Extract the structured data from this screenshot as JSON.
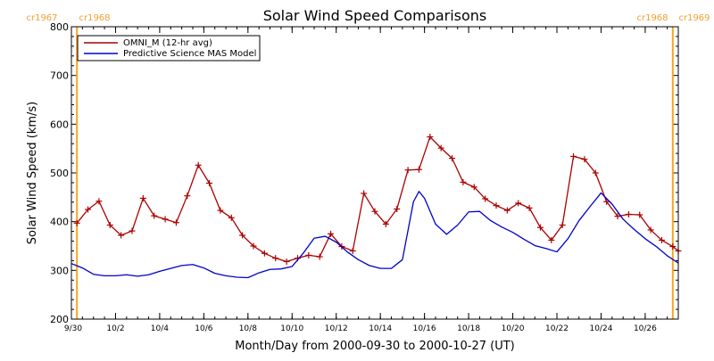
{
  "chart_data": {
    "type": "line",
    "title": "Solar Wind Speed Comparisons",
    "xlabel": "Month/Day from 2000-09-30 to 2000-10-27 (UT)",
    "ylabel": "Solar Wind Speed (km/s)",
    "ylim": [
      200,
      800
    ],
    "yticks": [
      "200",
      "300",
      "400",
      "500",
      "600",
      "700",
      "800"
    ],
    "xlim": [
      "2000-09-30",
      "2000-10-27 12:00"
    ],
    "xticks": [
      {
        "label": "9/30",
        "date": "2000-09-30"
      },
      {
        "label": "10/2",
        "date": "2000-10-02"
      },
      {
        "label": "10/4",
        "date": "2000-10-04"
      },
      {
        "label": "10/6",
        "date": "2000-10-06"
      },
      {
        "label": "10/8",
        "date": "2000-10-08"
      },
      {
        "label": "10/10",
        "date": "2000-10-10"
      },
      {
        "label": "10/12",
        "date": "2000-10-12"
      },
      {
        "label": "10/14",
        "date": "2000-10-14"
      },
      {
        "label": "10/16",
        "date": "2000-10-16"
      },
      {
        "label": "10/18",
        "date": "2000-10-18"
      },
      {
        "label": "10/20",
        "date": "2000-10-20"
      },
      {
        "label": "10/22",
        "date": "2000-10-22"
      },
      {
        "label": "10/24",
        "date": "2000-10-24"
      },
      {
        "label": "10/26",
        "date": "2000-10-26"
      }
    ],
    "legend_position": "top-left",
    "carrington_markers": [
      {
        "date": "2000-09-30 06:00",
        "left_label": "cr1967",
        "right_label": "cr1968",
        "color": "#f5a623"
      },
      {
        "date": "2000-10-27 06:00",
        "left_label": "cr1968",
        "right_label": "cr1969",
        "color": "#f5a623"
      }
    ],
    "series": [
      {
        "name": "OMNI_M (12-hr avg)",
        "color": "#aa0000",
        "markers": "plus",
        "points": [
          [
            "2000-09-30 06:00",
            397
          ],
          [
            "2000-09-30 18:00",
            425
          ],
          [
            "2000-10-01 06:00",
            442
          ],
          [
            "2000-10-01 18:00",
            393
          ],
          [
            "2000-10-02 06:00",
            372
          ],
          [
            "2000-10-02 18:00",
            381
          ],
          [
            "2000-10-03 06:00",
            448
          ],
          [
            "2000-10-03 18:00",
            412
          ],
          [
            "2000-10-04 06:00",
            405
          ],
          [
            "2000-10-04 18:00",
            398
          ],
          [
            "2000-10-05 06:00",
            453
          ],
          [
            "2000-10-05 18:00",
            516
          ],
          [
            "2000-10-06 06:00",
            479
          ],
          [
            "2000-10-06 18:00",
            423
          ],
          [
            "2000-10-07 06:00",
            408
          ],
          [
            "2000-10-07 18:00",
            372
          ],
          [
            "2000-10-08 06:00",
            350
          ],
          [
            "2000-10-08 18:00",
            335
          ],
          [
            "2000-10-09 06:00",
            325
          ],
          [
            "2000-10-09 18:00",
            318
          ],
          [
            "2000-10-10 06:00",
            325
          ],
          [
            "2000-10-10 18:00",
            331
          ],
          [
            "2000-10-11 06:00",
            328
          ],
          [
            "2000-10-11 18:00",
            375
          ],
          [
            "2000-10-12 06:00",
            349
          ],
          [
            "2000-10-12 18:00",
            340
          ],
          [
            "2000-10-13 06:00",
            458
          ],
          [
            "2000-10-13 18:00",
            421
          ],
          [
            "2000-10-14 06:00",
            395
          ],
          [
            "2000-10-14 18:00",
            426
          ],
          [
            "2000-10-15 06:00",
            506
          ],
          [
            "2000-10-15 18:00",
            507
          ],
          [
            "2000-10-16 06:00",
            574
          ],
          [
            "2000-10-16 18:00",
            551
          ],
          [
            "2000-10-17 06:00",
            530
          ],
          [
            "2000-10-17 18:00",
            481
          ],
          [
            "2000-10-18 06:00",
            471
          ],
          [
            "2000-10-18 18:00",
            447
          ],
          [
            "2000-10-19 06:00",
            433
          ],
          [
            "2000-10-19 18:00",
            423
          ],
          [
            "2000-10-20 06:00",
            438
          ],
          [
            "2000-10-20 18:00",
            428
          ],
          [
            "2000-10-21 06:00",
            388
          ],
          [
            "2000-10-21 18:00",
            362
          ],
          [
            "2000-10-22 06:00",
            393
          ],
          [
            "2000-10-22 18:00",
            534
          ],
          [
            "2000-10-23 06:00",
            528
          ],
          [
            "2000-10-23 18:00",
            500
          ],
          [
            "2000-10-24 06:00",
            441
          ],
          [
            "2000-10-24 18:00",
            411
          ],
          [
            "2000-10-25 06:00",
            415
          ],
          [
            "2000-10-25 18:00",
            414
          ],
          [
            "2000-10-26 06:00",
            383
          ],
          [
            "2000-10-26 18:00",
            362
          ],
          [
            "2000-10-27 06:00",
            349
          ],
          [
            "2000-10-27 12:00",
            340
          ]
        ]
      },
      {
        "name": "Predictive Science MAS Model",
        "color": "#0000cc",
        "markers": "none",
        "points": [
          [
            "2000-09-30 00:00",
            314
          ],
          [
            "2000-09-30 12:00",
            305
          ],
          [
            "2000-10-01 00:00",
            292
          ],
          [
            "2000-10-01 12:00",
            289
          ],
          [
            "2000-10-02 00:00",
            289
          ],
          [
            "2000-10-02 12:00",
            291
          ],
          [
            "2000-10-03 00:00",
            288
          ],
          [
            "2000-10-03 12:00",
            291
          ],
          [
            "2000-10-04 00:00",
            298
          ],
          [
            "2000-10-04 12:00",
            304
          ],
          [
            "2000-10-05 00:00",
            310
          ],
          [
            "2000-10-05 12:00",
            312
          ],
          [
            "2000-10-06 00:00",
            305
          ],
          [
            "2000-10-06 12:00",
            294
          ],
          [
            "2000-10-07 00:00",
            289
          ],
          [
            "2000-10-07 12:00",
            286
          ],
          [
            "2000-10-08 00:00",
            285
          ],
          [
            "2000-10-08 12:00",
            295
          ],
          [
            "2000-10-09 00:00",
            302
          ],
          [
            "2000-10-09 12:00",
            303
          ],
          [
            "2000-10-10 00:00",
            308
          ],
          [
            "2000-10-10 12:00",
            335
          ],
          [
            "2000-10-11 00:00",
            366
          ],
          [
            "2000-10-11 12:00",
            370
          ],
          [
            "2000-10-12 00:00",
            358
          ],
          [
            "2000-10-12 12:00",
            338
          ],
          [
            "2000-10-13 00:00",
            322
          ],
          [
            "2000-10-13 12:00",
            310
          ],
          [
            "2000-10-14 00:00",
            304
          ],
          [
            "2000-10-14 12:00",
            304
          ],
          [
            "2000-10-15 00:00",
            322
          ],
          [
            "2000-10-15 12:00",
            441
          ],
          [
            "2000-10-15 18:00",
            462
          ],
          [
            "2000-10-16 00:00",
            448
          ],
          [
            "2000-10-16 12:00",
            395
          ],
          [
            "2000-10-17 00:00",
            374
          ],
          [
            "2000-10-17 12:00",
            393
          ],
          [
            "2000-10-18 00:00",
            420
          ],
          [
            "2000-10-18 12:00",
            421
          ],
          [
            "2000-10-19 00:00",
            402
          ],
          [
            "2000-10-19 12:00",
            389
          ],
          [
            "2000-10-20 00:00",
            378
          ],
          [
            "2000-10-20 12:00",
            364
          ],
          [
            "2000-10-21 00:00",
            351
          ],
          [
            "2000-10-21 12:00",
            345
          ],
          [
            "2000-10-22 00:00",
            338
          ],
          [
            "2000-10-22 12:00",
            365
          ],
          [
            "2000-10-23 00:00",
            402
          ],
          [
            "2000-10-23 12:00",
            431
          ],
          [
            "2000-10-24 00:00",
            459
          ],
          [
            "2000-10-24 12:00",
            436
          ],
          [
            "2000-10-25 00:00",
            405
          ],
          [
            "2000-10-25 12:00",
            384
          ],
          [
            "2000-10-26 00:00",
            365
          ],
          [
            "2000-10-26 12:00",
            349
          ],
          [
            "2000-10-27 00:00",
            330
          ],
          [
            "2000-10-27 12:00",
            315
          ]
        ]
      }
    ]
  }
}
